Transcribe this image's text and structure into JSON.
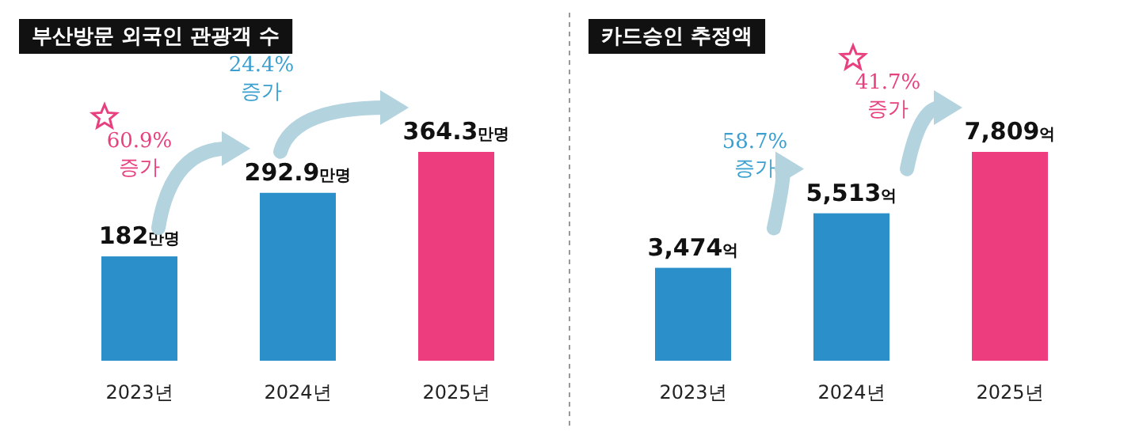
{
  "chart_data": [
    {
      "type": "bar",
      "title": "부산방문 외국인 관광객 수",
      "categories": [
        "2023년",
        "2024년",
        "2025년"
      ],
      "values": [
        182,
        292.9,
        364.3
      ],
      "colors": [
        "#2b8fc9",
        "#2b8fc9",
        "#ee3d7e"
      ],
      "value_labels": [
        "182만명",
        "292.9만명",
        "364.3만명"
      ],
      "annotations": [
        "60.9%\n증가",
        "24.4%\n증가"
      ]
    },
    {
      "type": "bar",
      "title": "카드승인 추정액",
      "categories": [
        "2023년",
        "2024년",
        "2025년"
      ],
      "values": [
        3474,
        5513,
        7809
      ],
      "colors": [
        "#2b8fc9",
        "#2b8fc9",
        "#ee3d7e"
      ],
      "value_labels": [
        "3,474억",
        "5,513억",
        "7,809억"
      ],
      "annotations": [
        "58.7%\n증가",
        "41.7%\n증가"
      ]
    }
  ]
}
